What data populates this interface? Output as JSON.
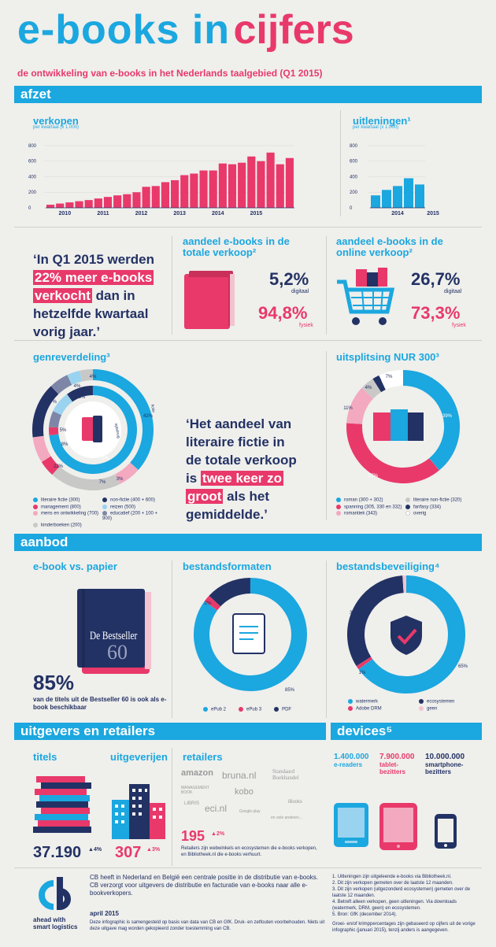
{
  "header": {
    "title_a": "e-books in",
    "title_b": "cijfers",
    "subtitle": "de ontwikkeling van e-books in het Nederlands taalgebied (Q1 2015)"
  },
  "sections": {
    "afzet": "afzet",
    "aanbod": "aanbod",
    "uitgevers": "uitgevers en retailers",
    "devices": "devices⁵"
  },
  "chart_data": [
    {
      "type": "bar",
      "title": "verkopen",
      "subtitle": "per kwartaal (x 1.000)",
      "yticks": [
        0,
        200,
        400,
        600,
        800
      ],
      "ylim": [
        0,
        850
      ],
      "xticks": [
        "2010",
        "2011",
        "2012",
        "2013",
        "2014",
        "2015"
      ],
      "values": [
        40,
        55,
        70,
        85,
        100,
        120,
        140,
        160,
        175,
        200,
        270,
        280,
        330,
        355,
        420,
        440,
        480,
        480,
        570,
        560,
        580,
        660,
        600,
        710,
        560,
        640
      ]
    },
    {
      "type": "bar",
      "title": "uitleningen¹",
      "subtitle": "per kwartaal (x 1.000)",
      "yticks": [
        0,
        200,
        400,
        600,
        800
      ],
      "ylim": [
        0,
        850
      ],
      "xticks": [
        "2014",
        "2015"
      ],
      "values": [
        160,
        230,
        280,
        380,
        300
      ]
    },
    {
      "type": "pie",
      "title": "genreverdeling³",
      "inner": [
        {
          "name": "literaire fictie",
          "value": 73
        },
        {
          "name": "management",
          "value": 3
        },
        {
          "name": "educatief",
          "value": 6
        },
        {
          "name": "reizen",
          "value": 8
        },
        {
          "name": "non-fictie",
          "value": 10
        }
      ],
      "outer": [
        {
          "name": "literaire fictie",
          "value": 42
        },
        {
          "name": "spanning",
          "value": 7
        },
        {
          "name": "kinderboeken",
          "value": 22
        },
        {
          "name": "management",
          "value": 5
        },
        {
          "name": "non-fictie",
          "value": 8
        },
        {
          "name": "mens",
          "value": 17
        },
        {
          "name": "educatief",
          "value": 6
        },
        {
          "name": "reizen",
          "value": 4
        },
        {
          "name": "overig",
          "value": 4
        }
      ]
    },
    {
      "type": "pie",
      "title": "uitsplitsing NUR 300³",
      "slices": [
        {
          "name": "roman",
          "value": 39
        },
        {
          "name": "spanning",
          "value": 37
        },
        {
          "name": "romantiek",
          "value": 11
        },
        {
          "name": "literaire non-fictie",
          "value": 4
        },
        {
          "name": "fanfasy",
          "value": 2
        },
        {
          "name": "overig",
          "value": 7
        }
      ]
    },
    {
      "type": "pie",
      "title": "bestandsformaten",
      "slices": [
        {
          "name": "ePub 2",
          "value": 85
        },
        {
          "name": "ePub 3",
          "value": 2
        },
        {
          "name": "PDF",
          "value": 13
        }
      ]
    },
    {
      "type": "pie",
      "title": "bestandsbeveiliging⁴",
      "slices": [
        {
          "name": "watermerk",
          "value": 65
        },
        {
          "name": "Adobe DRM",
          "value": 1
        },
        {
          "name": "ecosystemen",
          "value": 33
        },
        {
          "name": "geen",
          "value": 1
        }
      ]
    }
  ],
  "labels": {
    "genre_pcts": [
      "42%",
      "73%",
      "3%",
      "7%",
      "22%",
      "5%",
      "8%",
      "17%",
      "6%",
      "6%",
      "4%",
      "4%"
    ],
    "nur_pcts": [
      "39%",
      "37%",
      "11%",
      "4%",
      "2%",
      "7%"
    ],
    "fmt_pcts": [
      "85%",
      "2%",
      "13%"
    ],
    "sec_pcts": [
      "65%",
      "33%",
      "1%"
    ],
    "genre_side": [
      "fictie",
      "sptsbrug"
    ]
  },
  "quote1": {
    "a": "‘In Q1 2015 werden",
    "h1": "22% meer e-books",
    "h2": "verkocht",
    "b": "dan in",
    "c": "hetzelfde kwartaal",
    "d": "vorig jaar.’"
  },
  "quote2": {
    "a": "‘Het aandeel van",
    "b": "literaire fictie in",
    "c": "de totale verkoop",
    "d": "is",
    "h1": "twee keer zo",
    "h2": "groot",
    "e": "als het",
    "f": "gemiddelde.’"
  },
  "share_total": {
    "title": "aandeel e-books in de totale verkoop²",
    "digitaal": "5,2%",
    "digitaal_label": "digitaal",
    "fysiek": "94,8%",
    "fysiek_label": "fysiek"
  },
  "share_online": {
    "title": "aandeel e-books in de online verkoop²",
    "digitaal": "26,7%",
    "digitaal_label": "digitaal",
    "fysiek": "73,3%",
    "fysiek_label": "fysiek"
  },
  "genre_legend": [
    "literaire fictie (300)",
    "non-fictie (400 + 600)",
    "management (800)",
    "reizen (500)",
    "mens en ontwikkeling (700)",
    "educatief (200 + 100 + 900)",
    "kinderboeken (200)"
  ],
  "nur_legend": [
    "roman (300 + 302)",
    "literaire non-fictie (320)",
    "spanning (305, 330 en 332)",
    "fanfasy (334)",
    "romantiek (343)",
    "overig"
  ],
  "aanbod": {
    "ebook_vs": "e-book vs. papier",
    "book_title": "De Bestseller",
    "book_num": "60",
    "pct": "85%",
    "pct_text": "van de titels uit de Bestseller 60 is ook als e-book beschikbaar",
    "formats_title": "bestandsformaten",
    "formats_legend": [
      "ePub 2",
      "ePub 3",
      "PDF"
    ],
    "sec_title": "bestandsbeveiliging⁴",
    "sec_legend": [
      "watermerk",
      "ecosystemen",
      "Adobe DRM",
      "geen"
    ]
  },
  "retail": {
    "titels": "titels",
    "titels_value": "37.190",
    "titels_growth": "4%",
    "uitgeverijen": "uitgeverijen",
    "uitg_value": "307",
    "uitg_growth": "3%",
    "retailers": "retailers",
    "logos": [
      "amazon",
      "bruna.nl",
      "Standaard Boekhandel",
      "MANAGEMENT BOOK",
      "kobo",
      "LIBRIS",
      "eci.nl",
      "Google play",
      "iBooks",
      "en vele anderen..."
    ],
    "ret_value": "195",
    "ret_growth": "2%",
    "ret_text": "Retailers zijn webwinkels en ecosystemen die e-books verkopen, en Bibliotheek.nl die e-books verhuurt."
  },
  "devices": {
    "items": [
      {
        "value": "1.400.000",
        "label": "e-readers"
      },
      {
        "value": "7.900.000",
        "label": "tablet-bezitters"
      },
      {
        "value": "10.000.000",
        "label": "smartphone-bezitters"
      }
    ]
  },
  "footer": {
    "logo": "cb",
    "tagline1": "ahead with",
    "tagline2": "smart logistics",
    "text": "CB heeft in Nederland en België een centrale positie in de distributie van e-books. CB verzorgt voor uitgevers de distributie en facturatie van e-books naar alle e-bookverkopers.",
    "date": "april 2015",
    "disclaimer": "Deze infographic is samengesteld op basis van data van CB en GfK. Druk- en zetfouten voorbehouden. Niets uit deze uitgave mag worden gekopieerd zonder toestemming van CB.",
    "notes": [
      "Uitleningen zijn uitgeleende e-books via Bibliotheek.nl.",
      "Dit zijn verkopen gemeten over de laatste 12 maanden.",
      "Dit zijn verkopen (uitgezonderd ecosystemen) gemeten over de laatste 12 maanden.",
      "Betreft alleen verkopen, geen uitleningen. Via downloads (watermerk, DRM, geen) en ecosystemen.",
      "Bron: GfK (december 2014)."
    ],
    "note_extra": "Groei- en/of krimppercentages zijn gebaseerd op cijfers uit de vorige infographic (januari 2015), tenzij anders is aangegeven."
  }
}
